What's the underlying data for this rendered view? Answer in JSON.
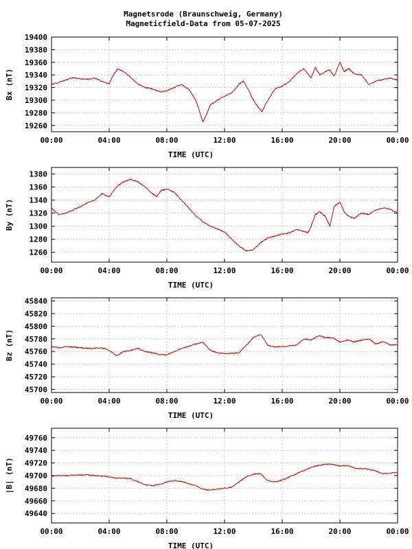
{
  "chart_data": [
    {
      "type": "line",
      "title": [
        "Magnetsrode (Braunschweig, Germany)",
        "Magneticfield-Data from 05-07-2025"
      ],
      "xlabel": "TIME (UTC)",
      "ylabel": "Bx (nT)",
      "xlim": [
        0,
        24
      ],
      "ylim": [
        19250,
        19400
      ],
      "x_ticks": [
        0,
        4,
        8,
        12,
        16,
        20,
        24
      ],
      "x_tick_labels": [
        "00:00",
        "04:00",
        "08:00",
        "12:00",
        "16:00",
        "20:00",
        "00:00"
      ],
      "y_ticks": [
        19260,
        19280,
        19300,
        19320,
        19340,
        19360,
        19380,
        19400
      ],
      "color": "#cc0000",
      "grid": true,
      "series": [
        {
          "x": [
            0,
            0.5,
            1,
            1.5,
            2,
            2.5,
            3,
            3.5,
            4,
            4.3,
            4.6,
            5,
            5.5,
            6,
            6.5,
            7,
            7.5,
            8,
            8.5,
            9,
            9.5,
            10,
            10.3,
            10.5,
            10.8,
            11,
            11.5,
            12,
            12.5,
            13,
            13.3,
            13.7,
            14,
            14.3,
            14.6,
            15,
            15.5,
            16,
            16.5,
            17,
            17.5,
            18,
            18.3,
            18.6,
            19,
            19.3,
            19.6,
            20,
            20.3,
            20.6,
            21,
            21.5,
            22,
            22.5,
            23,
            23.5,
            24
          ],
          "y": [
            19325,
            19328,
            19332,
            19336,
            19334,
            19333,
            19335,
            19330,
            19326,
            19340,
            19350,
            19345,
            19336,
            19325,
            19320,
            19318,
            19313,
            19315,
            19320,
            19325,
            19318,
            19300,
            19280,
            19265,
            19280,
            19292,
            19300,
            19306,
            19312,
            19325,
            19330,
            19315,
            19300,
            19290,
            19282,
            19300,
            19318,
            19322,
            19330,
            19342,
            19350,
            19335,
            19352,
            19340,
            19345,
            19348,
            19338,
            19360,
            19345,
            19350,
            19342,
            19340,
            19325,
            19330,
            19333,
            19335,
            19332
          ]
        }
      ]
    },
    {
      "type": "line",
      "xlabel": "TIME (UTC)",
      "ylabel": "By (nT)",
      "xlim": [
        0,
        24
      ],
      "ylim": [
        1245,
        1390
      ],
      "x_ticks": [
        0,
        4,
        8,
        12,
        16,
        20,
        24
      ],
      "x_tick_labels": [
        "00:00",
        "04:00",
        "08:00",
        "12:00",
        "16:00",
        "20:00",
        "00:00"
      ],
      "y_ticks": [
        1260,
        1280,
        1300,
        1320,
        1340,
        1360,
        1380
      ],
      "color": "#cc0000",
      "grid": true,
      "series": [
        {
          "x": [
            0,
            0.5,
            1,
            1.5,
            2,
            2.5,
            3,
            3.5,
            4,
            4.5,
            5,
            5.5,
            6,
            6.5,
            7,
            7.3,
            7.6,
            8,
            8.5,
            9,
            9.5,
            10,
            10.5,
            11,
            11.5,
            12,
            12.5,
            13,
            13.5,
            14,
            14.5,
            15,
            15.5,
            16,
            16.5,
            17,
            17.5,
            17.8,
            18,
            18.3,
            18.6,
            19,
            19.3,
            19.6,
            20,
            20.3,
            20.6,
            21,
            21.5,
            22,
            22.5,
            23,
            23.5,
            24
          ],
          "y": [
            1328,
            1318,
            1320,
            1325,
            1330,
            1336,
            1340,
            1350,
            1345,
            1360,
            1368,
            1372,
            1368,
            1360,
            1350,
            1345,
            1355,
            1357,
            1352,
            1340,
            1328,
            1316,
            1307,
            1300,
            1296,
            1291,
            1280,
            1270,
            1262,
            1264,
            1275,
            1282,
            1285,
            1288,
            1290,
            1295,
            1292,
            1290,
            1300,
            1318,
            1322,
            1315,
            1300,
            1330,
            1337,
            1322,
            1315,
            1312,
            1320,
            1318,
            1325,
            1328,
            1326,
            1320
          ]
        }
      ]
    },
    {
      "type": "line",
      "xlabel": "TIME (UTC)",
      "ylabel": "Bz (nT)",
      "xlim": [
        0,
        24
      ],
      "ylim": [
        45695,
        45845
      ],
      "x_ticks": [
        0,
        4,
        8,
        12,
        16,
        20,
        24
      ],
      "x_tick_labels": [
        "00:00",
        "04:00",
        "08:00",
        "12:00",
        "16:00",
        "20:00",
        "00:00"
      ],
      "y_ticks": [
        45700,
        45720,
        45740,
        45760,
        45780,
        45800,
        45820,
        45840
      ],
      "color": "#cc0000",
      "grid": true,
      "series": [
        {
          "x": [
            0,
            0.5,
            1,
            1.5,
            2,
            2.5,
            3,
            3.5,
            4,
            4.5,
            5,
            5.5,
            6,
            6.5,
            7,
            7.5,
            8,
            8.5,
            9,
            9.5,
            10,
            10.5,
            11,
            11.5,
            12,
            12.5,
            13,
            13.5,
            14,
            14.5,
            15,
            15.5,
            16,
            16.5,
            17,
            17.5,
            18,
            18.5,
            19,
            19.5,
            20,
            20.5,
            21,
            21.5,
            22,
            22.5,
            23,
            23.5,
            24
          ],
          "y": [
            45768,
            45766,
            45768,
            45767,
            45766,
            45765,
            45765,
            45766,
            45762,
            45753,
            45760,
            45762,
            45765,
            45760,
            45758,
            45755,
            45755,
            45760,
            45765,
            45768,
            45772,
            45775,
            45762,
            45758,
            45757,
            45757,
            45758,
            45770,
            45782,
            45787,
            45770,
            45767,
            45768,
            45769,
            45770,
            45780,
            45778,
            45785,
            45782,
            45782,
            45775,
            45778,
            45775,
            45778,
            45780,
            45772,
            45776,
            45770,
            45771
          ]
        }
      ]
    },
    {
      "type": "line",
      "xlabel": "TIME (UTC)",
      "ylabel": "|B| (nT)",
      "xlim": [
        0,
        24
      ],
      "ylim": [
        49625,
        49775
      ],
      "x_ticks": [
        0,
        4,
        8,
        12,
        16,
        20,
        24
      ],
      "x_tick_labels": [
        "00:00",
        "04:00",
        "08:00",
        "12:00",
        "16:00",
        "20:00",
        "00:00"
      ],
      "y_ticks": [
        49640,
        49660,
        49680,
        49700,
        49720,
        49740,
        49760
      ],
      "color": "#cc0000",
      "grid": true,
      "series": [
        {
          "x": [
            0,
            0.5,
            1,
            1.5,
            2,
            2.5,
            3,
            3.5,
            4,
            4.5,
            5,
            5.5,
            6,
            6.5,
            7,
            7.5,
            8,
            8.5,
            9,
            9.5,
            10,
            10.5,
            11,
            11.5,
            12,
            12.5,
            13,
            13.5,
            14,
            14.5,
            15,
            15.5,
            16,
            16.5,
            17,
            17.5,
            18,
            18.5,
            19,
            19.5,
            20,
            20.5,
            21,
            21.5,
            22,
            22.5,
            23,
            23.5,
            24
          ],
          "y": [
            49699,
            49700,
            49700,
            49701,
            49701,
            49701,
            49700,
            49699,
            49698,
            49696,
            49696,
            49695,
            49690,
            49685,
            49684,
            49686,
            49690,
            49692,
            49691,
            49687,
            49684,
            49678,
            49677,
            49679,
            49680,
            49682,
            49690,
            49698,
            49702,
            49703,
            49692,
            49690,
            49693,
            49698,
            49703,
            49708,
            49713,
            49716,
            49718,
            49718,
            49715,
            49716,
            49712,
            49711,
            49710,
            49707,
            49703,
            49704,
            49705
          ]
        }
      ]
    }
  ]
}
